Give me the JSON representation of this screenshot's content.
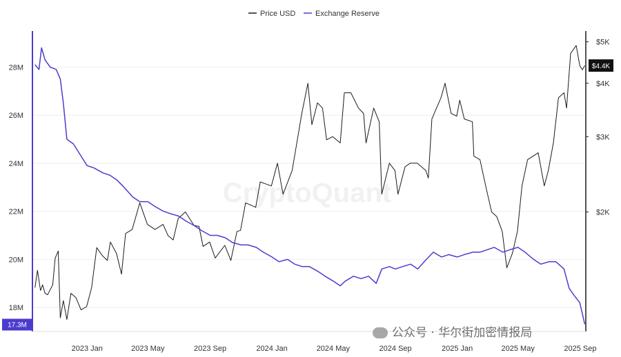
{
  "chart_data": {
    "type": "line",
    "legend_position": "top-center",
    "grid": "horizontal",
    "series": [
      {
        "name": "Price USD",
        "axis": "right",
        "color": "#1a1a1a",
        "values": [
          [
            "2022-09-20",
            1330
          ],
          [
            "2022-09-25",
            1460
          ],
          [
            "2022-10-01",
            1310
          ],
          [
            "2022-10-05",
            1350
          ],
          [
            "2022-10-10",
            1290
          ],
          [
            "2022-10-15",
            1280
          ],
          [
            "2022-10-25",
            1350
          ],
          [
            "2022-10-30",
            1560
          ],
          [
            "2022-11-05",
            1620
          ],
          [
            "2022-11-09",
            1130
          ],
          [
            "2022-11-15",
            1240
          ],
          [
            "2022-11-22",
            1120
          ],
          [
            "2022-11-30",
            1290
          ],
          [
            "2022-12-10",
            1260
          ],
          [
            "2022-12-20",
            1180
          ],
          [
            "2022-12-31",
            1200
          ],
          [
            "2023-01-10",
            1330
          ],
          [
            "2023-01-20",
            1650
          ],
          [
            "2023-01-31",
            1580
          ],
          [
            "2023-02-10",
            1540
          ],
          [
            "2023-02-16",
            1700
          ],
          [
            "2023-02-28",
            1600
          ],
          [
            "2023-03-10",
            1430
          ],
          [
            "2023-03-18",
            1780
          ],
          [
            "2023-03-31",
            1820
          ],
          [
            "2023-04-15",
            2100
          ],
          [
            "2023-04-30",
            1870
          ],
          [
            "2023-05-15",
            1820
          ],
          [
            "2023-05-31",
            1870
          ],
          [
            "2023-06-10",
            1760
          ],
          [
            "2023-06-20",
            1720
          ],
          [
            "2023-06-30",
            1930
          ],
          [
            "2023-07-14",
            2000
          ],
          [
            "2023-07-31",
            1860
          ],
          [
            "2023-08-10",
            1850
          ],
          [
            "2023-08-18",
            1660
          ],
          [
            "2023-08-31",
            1700
          ],
          [
            "2023-09-11",
            1560
          ],
          [
            "2023-09-30",
            1670
          ],
          [
            "2023-10-12",
            1540
          ],
          [
            "2023-10-24",
            1800
          ],
          [
            "2023-10-31",
            1810
          ],
          [
            "2023-11-10",
            2100
          ],
          [
            "2023-11-30",
            2050
          ],
          [
            "2023-12-09",
            2350
          ],
          [
            "2023-12-31",
            2300
          ],
          [
            "2024-01-12",
            2600
          ],
          [
            "2024-01-23",
            2200
          ],
          [
            "2024-02-10",
            2500
          ],
          [
            "2024-02-29",
            3400
          ],
          [
            "2024-03-12",
            4000
          ],
          [
            "2024-03-20",
            3200
          ],
          [
            "2024-03-31",
            3600
          ],
          [
            "2024-04-10",
            3500
          ],
          [
            "2024-04-18",
            2950
          ],
          [
            "2024-04-30",
            3000
          ],
          [
            "2024-05-15",
            2900
          ],
          [
            "2024-05-23",
            3800
          ],
          [
            "2024-06-05",
            3800
          ],
          [
            "2024-06-20",
            3500
          ],
          [
            "2024-06-30",
            3400
          ],
          [
            "2024-07-05",
            2900
          ],
          [
            "2024-07-20",
            3500
          ],
          [
            "2024-07-31",
            3250
          ],
          [
            "2024-08-05",
            2200
          ],
          [
            "2024-08-20",
            2600
          ],
          [
            "2024-08-31",
            2500
          ],
          [
            "2024-09-06",
            2200
          ],
          [
            "2024-09-20",
            2550
          ],
          [
            "2024-09-30",
            2600
          ],
          [
            "2024-10-14",
            2600
          ],
          [
            "2024-10-31",
            2500
          ],
          [
            "2024-11-05",
            2400
          ],
          [
            "2024-11-12",
            3300
          ],
          [
            "2024-11-30",
            3700
          ],
          [
            "2024-12-08",
            4000
          ],
          [
            "2024-12-20",
            3400
          ],
          [
            "2024-12-31",
            3350
          ],
          [
            "2025-01-06",
            3650
          ],
          [
            "2025-01-15",
            3300
          ],
          [
            "2025-01-31",
            3250
          ],
          [
            "2025-02-03",
            2700
          ],
          [
            "2025-02-15",
            2650
          ],
          [
            "2025-02-28",
            2250
          ],
          [
            "2025-03-10",
            2000
          ],
          [
            "2025-03-20",
            1950
          ],
          [
            "2025-03-31",
            1800
          ],
          [
            "2025-04-09",
            1480
          ],
          [
            "2025-04-20",
            1600
          ],
          [
            "2025-04-30",
            1800
          ],
          [
            "2025-05-09",
            2300
          ],
          [
            "2025-05-20",
            2650
          ],
          [
            "2025-06-10",
            2750
          ],
          [
            "2025-06-22",
            2300
          ],
          [
            "2025-06-30",
            2500
          ],
          [
            "2025-07-10",
            2900
          ],
          [
            "2025-07-20",
            3700
          ],
          [
            "2025-07-31",
            3800
          ],
          [
            "2025-08-05",
            3500
          ],
          [
            "2025-08-13",
            4700
          ],
          [
            "2025-08-24",
            4900
          ],
          [
            "2025-08-31",
            4400
          ],
          [
            "2025-09-05",
            4300
          ],
          [
            "2025-09-10",
            4400
          ]
        ]
      },
      {
        "name": "Exchange Reserve",
        "axis": "left",
        "color": "#4b3ccf",
        "values": [
          [
            "2022-09-20",
            28.1
          ],
          [
            "2022-09-28",
            27.9
          ],
          [
            "2022-10-03",
            28.8
          ],
          [
            "2022-10-10",
            28.3
          ],
          [
            "2022-10-20",
            28.0
          ],
          [
            "2022-11-01",
            27.9
          ],
          [
            "2022-11-09",
            27.5
          ],
          [
            "2022-11-15",
            26.5
          ],
          [
            "2022-11-22",
            25.0
          ],
          [
            "2022-12-05",
            24.8
          ],
          [
            "2022-12-20",
            24.3
          ],
          [
            "2023-01-01",
            23.9
          ],
          [
            "2023-01-15",
            23.8
          ],
          [
            "2023-02-01",
            23.6
          ],
          [
            "2023-02-15",
            23.5
          ],
          [
            "2023-03-01",
            23.3
          ],
          [
            "2023-03-15",
            23.0
          ],
          [
            "2023-04-01",
            22.6
          ],
          [
            "2023-04-15",
            22.4
          ],
          [
            "2023-05-01",
            22.4
          ],
          [
            "2023-05-15",
            22.2
          ],
          [
            "2023-06-01",
            22.0
          ],
          [
            "2023-06-15",
            21.9
          ],
          [
            "2023-07-01",
            21.8
          ],
          [
            "2023-07-15",
            21.6
          ],
          [
            "2023-08-01",
            21.4
          ],
          [
            "2023-08-15",
            21.2
          ],
          [
            "2023-09-01",
            21.0
          ],
          [
            "2023-09-15",
            21.0
          ],
          [
            "2023-10-01",
            20.9
          ],
          [
            "2023-10-15",
            20.7
          ],
          [
            "2023-11-01",
            20.6
          ],
          [
            "2023-11-15",
            20.6
          ],
          [
            "2023-12-01",
            20.5
          ],
          [
            "2023-12-15",
            20.3
          ],
          [
            "2024-01-01",
            20.1
          ],
          [
            "2024-01-15",
            19.9
          ],
          [
            "2024-02-01",
            20.0
          ],
          [
            "2024-02-15",
            19.8
          ],
          [
            "2024-03-01",
            19.7
          ],
          [
            "2024-03-15",
            19.7
          ],
          [
            "2024-04-01",
            19.5
          ],
          [
            "2024-04-15",
            19.3
          ],
          [
            "2024-05-01",
            19.1
          ],
          [
            "2024-05-15",
            18.9
          ],
          [
            "2024-05-25",
            19.1
          ],
          [
            "2024-06-10",
            19.3
          ],
          [
            "2024-06-25",
            19.2
          ],
          [
            "2024-07-10",
            19.3
          ],
          [
            "2024-07-25",
            19.0
          ],
          [
            "2024-08-05",
            19.6
          ],
          [
            "2024-08-20",
            19.7
          ],
          [
            "2024-09-01",
            19.6
          ],
          [
            "2024-09-15",
            19.7
          ],
          [
            "2024-10-01",
            19.8
          ],
          [
            "2024-10-15",
            19.6
          ],
          [
            "2024-11-01",
            20.0
          ],
          [
            "2024-11-15",
            20.3
          ],
          [
            "2024-12-01",
            20.1
          ],
          [
            "2024-12-15",
            20.2
          ],
          [
            "2025-01-01",
            20.1
          ],
          [
            "2025-01-15",
            20.2
          ],
          [
            "2025-02-01",
            20.3
          ],
          [
            "2025-02-15",
            20.3
          ],
          [
            "2025-03-01",
            20.4
          ],
          [
            "2025-03-15",
            20.5
          ],
          [
            "2025-04-01",
            20.3
          ],
          [
            "2025-04-15",
            20.4
          ],
          [
            "2025-05-01",
            20.5
          ],
          [
            "2025-05-15",
            20.3
          ],
          [
            "2025-06-01",
            20.0
          ],
          [
            "2025-06-15",
            19.8
          ],
          [
            "2025-07-01",
            19.9
          ],
          [
            "2025-07-15",
            19.9
          ],
          [
            "2025-07-31",
            19.6
          ],
          [
            "2025-08-10",
            18.8
          ],
          [
            "2025-08-20",
            18.5
          ],
          [
            "2025-08-31",
            18.2
          ],
          [
            "2025-09-10",
            17.3
          ]
        ]
      }
    ],
    "x_range": [
      "2022-09-15",
      "2025-09-12"
    ],
    "x_ticks": [
      [
        "2023-01-01",
        "2023 Jan"
      ],
      [
        "2023-05-01",
        "2023 May"
      ],
      [
        "2023-09-01",
        "2023 Sep"
      ],
      [
        "2024-01-01",
        "2024 Jan"
      ],
      [
        "2024-05-01",
        "2024 May"
      ],
      [
        "2024-09-01",
        "2024 Sep"
      ],
      [
        "2025-01-01",
        "2025 Jan"
      ],
      [
        "2025-05-01",
        "2025 May"
      ],
      [
        "2025-09-01",
        "2025 Sep"
      ]
    ],
    "y_left": {
      "unit": "M",
      "range": [
        17.0,
        29.5
      ],
      "ticks": [
        [
          18,
          "18M"
        ],
        [
          20,
          "20M"
        ],
        [
          22,
          "22M"
        ],
        [
          24,
          "24M"
        ],
        [
          26,
          "26M"
        ],
        [
          28,
          "28M"
        ]
      ],
      "current_label": "17.3M"
    },
    "y_right": {
      "scale": "log",
      "range": [
        1050,
        5300
      ],
      "ticks": [
        [
          2000,
          "$2K"
        ],
        [
          3000,
          "$3K"
        ],
        [
          4000,
          "$4K"
        ],
        [
          5000,
          "$5K"
        ]
      ],
      "current_label": "$4.4K"
    }
  },
  "watermark": "CryptoQuant",
  "footer": {
    "prefix": "公众号 · ",
    "name": "华尔街加密情报局"
  }
}
